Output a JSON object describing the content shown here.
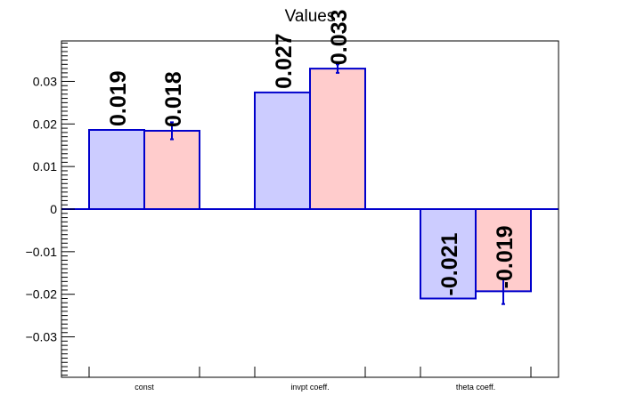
{
  "chart_data": {
    "type": "bar",
    "title": "Values",
    "xlabel": "",
    "ylabel": "",
    "categories": [
      "const",
      "invpt coeff.",
      "theta coeff."
    ],
    "ylim": [
      -0.0395,
      0.0395
    ],
    "yticks": [
      -0.03,
      -0.02,
      -0.01,
      0,
      0.01,
      0.02,
      0.03
    ],
    "ytick_labels": [
      "−0.03",
      "−0.02",
      "−0.01",
      "0",
      "0.01",
      "0.02",
      "0.03"
    ],
    "grid": false,
    "legend": "none",
    "series": [
      {
        "values": [
          0.0186,
          0.0274,
          -0.021
        ],
        "labels": [
          "0.019",
          "0.027",
          "-0.021"
        ],
        "errors": [
          0,
          0,
          0
        ],
        "fill": "#ccccff"
      },
      {
        "values": [
          0.0184,
          0.033,
          -0.0193
        ],
        "labels": [
          "0.018",
          "0.033",
          "-0.019"
        ],
        "errors": [
          0.002,
          0.001,
          0.003
        ],
        "fill": "#ffcccc"
      }
    ],
    "edge_color": "#0000cc",
    "error_color": "#0000cc"
  }
}
